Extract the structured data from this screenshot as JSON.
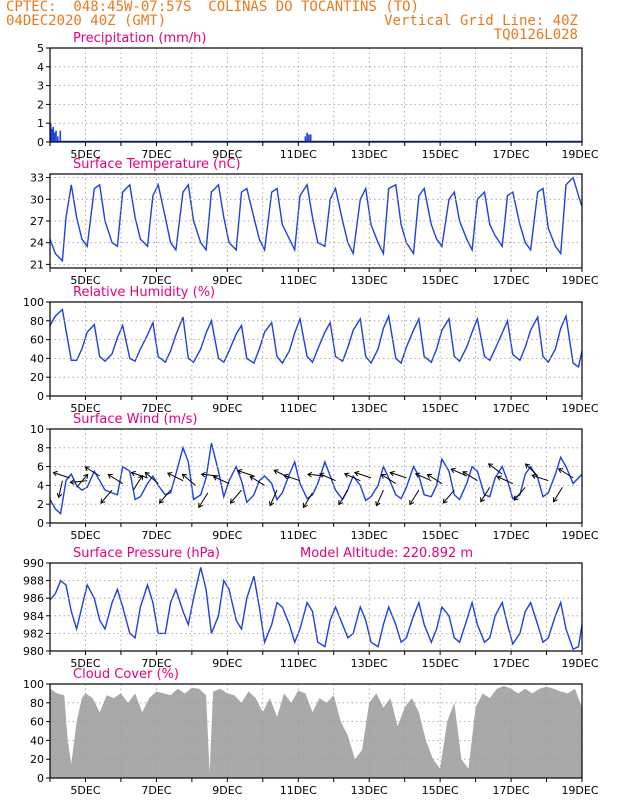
{
  "header": {
    "line1_left": "CPTEC:  048:45W-07:57S  COLINAS DO TOCANTINS (TO)",
    "line2_left": "04DEC2020 40Z (GMT)",
    "line2_right": "Vertical Grid Line: 40Z",
    "line3_right": "TQ0126L028",
    "model_altitude": "Model Altitude: 220.892 m"
  },
  "colors": {
    "header": "#e87a1e",
    "title": "#e6007e",
    "line": "#1f3fe0",
    "cloud": "#a9a9a9",
    "grid": "#9a9a9a"
  },
  "x_ticks": [
    "5DEC",
    "7DEC",
    "9DEC",
    "11DEC",
    "13DEC",
    "15DEC",
    "17DEC",
    "19DEC"
  ],
  "chart_data": [
    {
      "id": "precip",
      "type": "bar",
      "title": "Precipitation (mm/h)",
      "ylim": [
        0,
        5
      ],
      "yticks": [
        0,
        1,
        2,
        3,
        4,
        5
      ],
      "color": "#1f3fe0",
      "grid": true,
      "x_days": [
        0.02,
        0.05,
        0.09,
        0.13,
        0.17,
        0.22,
        0.29,
        7.2,
        7.25,
        7.3,
        7.35
      ],
      "values": [
        1.0,
        0.7,
        0.8,
        0.5,
        0.6,
        0.3,
        0.6,
        0.3,
        0.5,
        0.4,
        0.4
      ]
    },
    {
      "id": "temp",
      "type": "line",
      "title": "Surface Temperature (nC)",
      "ylim": [
        20.5,
        33.5
      ],
      "yticks": [
        21,
        24,
        27,
        30,
        33
      ],
      "color": "#1f3fe0",
      "grid": true,
      "x_days": [
        0.0,
        0.15,
        0.35,
        0.45,
        0.6,
        0.75,
        0.9,
        1.05,
        1.25,
        1.4,
        1.55,
        1.75,
        1.9,
        2.05,
        2.25,
        2.4,
        2.55,
        2.75,
        2.9,
        3.05,
        3.25,
        3.4,
        3.55,
        3.75,
        3.9,
        4.05,
        4.25,
        4.4,
        4.55,
        4.75,
        4.9,
        5.05,
        5.25,
        5.4,
        5.55,
        5.75,
        5.9,
        6.05,
        6.25,
        6.4,
        6.55,
        6.75,
        6.9,
        7.05,
        7.25,
        7.4,
        7.55,
        7.75,
        7.9,
        8.05,
        8.25,
        8.4,
        8.55,
        8.75,
        8.9,
        9.05,
        9.25,
        9.4,
        9.55,
        9.75,
        9.9,
        10.05,
        10.25,
        10.4,
        10.55,
        10.75,
        10.9,
        11.05,
        11.25,
        11.4,
        11.55,
        11.75,
        11.9,
        12.05,
        12.25,
        12.4,
        12.55,
        12.75,
        12.9,
        13.05,
        13.25,
        13.4,
        13.55,
        13.75,
        13.9,
        14.05,
        14.25,
        14.4,
        14.55,
        14.75,
        14.9,
        15.0
      ],
      "values": [
        24.5,
        22.5,
        21.5,
        27.5,
        32.0,
        27.5,
        24.5,
        23.5,
        31.5,
        32.0,
        27.0,
        24.0,
        23.5,
        31.0,
        32.0,
        27.5,
        24.5,
        23.5,
        30.5,
        32.0,
        27.5,
        24.0,
        23.0,
        31.0,
        32.0,
        27.0,
        24.0,
        23.0,
        31.0,
        32.0,
        27.5,
        24.0,
        23.0,
        31.0,
        31.5,
        27.5,
        24.5,
        23.0,
        31.0,
        31.5,
        26.5,
        24.5,
        23.0,
        30.5,
        32.0,
        27.5,
        24.0,
        23.5,
        30.0,
        31.5,
        27.0,
        24.0,
        22.5,
        30.0,
        31.5,
        26.5,
        24.0,
        22.5,
        31.5,
        32.0,
        26.5,
        24.0,
        22.5,
        30.5,
        31.5,
        26.5,
        24.5,
        23.5,
        30.0,
        31.0,
        27.0,
        24.5,
        23.0,
        30.0,
        31.0,
        26.5,
        25.0,
        23.5,
        30.5,
        31.0,
        26.5,
        24.0,
        23.0,
        31.0,
        31.5,
        26.0,
        23.5,
        22.5,
        32.0,
        33.0,
        30.5,
        29.0
      ]
    },
    {
      "id": "rh",
      "type": "line",
      "title": "Relative Humidity (%)",
      "ylim": [
        0,
        100
      ],
      "yticks": [
        0,
        20,
        40,
        60,
        80,
        100
      ],
      "color": "#1f3fe0",
      "grid": true,
      "x_days": [
        0.0,
        0.15,
        0.35,
        0.45,
        0.6,
        0.75,
        0.9,
        1.05,
        1.25,
        1.4,
        1.55,
        1.75,
        1.9,
        2.05,
        2.25,
        2.4,
        2.55,
        2.75,
        2.9,
        3.05,
        3.25,
        3.4,
        3.55,
        3.75,
        3.9,
        4.05,
        4.25,
        4.4,
        4.55,
        4.75,
        4.9,
        5.05,
        5.25,
        5.4,
        5.55,
        5.75,
        5.9,
        6.05,
        6.25,
        6.4,
        6.55,
        6.75,
        6.9,
        7.05,
        7.25,
        7.4,
        7.55,
        7.75,
        7.9,
        8.05,
        8.25,
        8.4,
        8.55,
        8.75,
        8.9,
        9.05,
        9.25,
        9.4,
        9.55,
        9.75,
        9.9,
        10.05,
        10.25,
        10.4,
        10.55,
        10.75,
        10.9,
        11.05,
        11.25,
        11.4,
        11.55,
        11.75,
        11.9,
        12.05,
        12.25,
        12.4,
        12.55,
        12.75,
        12.9,
        13.05,
        13.25,
        13.4,
        13.55,
        13.75,
        13.9,
        14.05,
        14.25,
        14.4,
        14.55,
        14.75,
        14.9,
        15.0
      ],
      "values": [
        75,
        85,
        92,
        70,
        38,
        38,
        50,
        68,
        76,
        42,
        37,
        45,
        62,
        75,
        40,
        37,
        50,
        65,
        78,
        42,
        36,
        48,
        65,
        84,
        40,
        36,
        50,
        67,
        80,
        40,
        36,
        48,
        66,
        75,
        40,
        35,
        50,
        68,
        78,
        42,
        35,
        48,
        67,
        82,
        42,
        36,
        50,
        68,
        78,
        42,
        37,
        52,
        70,
        82,
        42,
        35,
        50,
        72,
        85,
        40,
        35,
        52,
        70,
        82,
        42,
        36,
        50,
        70,
        82,
        42,
        37,
        52,
        68,
        82,
        42,
        38,
        50,
        67,
        80,
        44,
        38,
        52,
        70,
        84,
        42,
        36,
        50,
        72,
        85,
        35,
        31,
        48
      ]
    },
    {
      "id": "wind",
      "type": "line",
      "title": "Surface Wind (m/s)",
      "ylim": [
        0,
        10
      ],
      "yticks": [
        0,
        2,
        4,
        6,
        8,
        10
      ],
      "color": "#1f3fe0",
      "grid": true,
      "x_days": [
        0.0,
        0.15,
        0.3,
        0.45,
        0.6,
        0.75,
        0.9,
        1.05,
        1.25,
        1.4,
        1.55,
        1.75,
        1.9,
        2.05,
        2.25,
        2.4,
        2.55,
        2.75,
        2.9,
        3.05,
        3.25,
        3.4,
        3.55,
        3.75,
        3.9,
        4.05,
        4.25,
        4.4,
        4.55,
        4.75,
        4.9,
        5.05,
        5.25,
        5.4,
        5.55,
        5.75,
        5.9,
        6.05,
        6.25,
        6.4,
        6.55,
        6.75,
        6.9,
        7.05,
        7.25,
        7.4,
        7.55,
        7.75,
        7.9,
        8.05,
        8.25,
        8.4,
        8.55,
        8.75,
        8.9,
        9.05,
        9.25,
        9.4,
        9.55,
        9.75,
        9.9,
        10.05,
        10.25,
        10.4,
        10.55,
        10.75,
        10.9,
        11.05,
        11.25,
        11.4,
        11.55,
        11.75,
        11.9,
        12.05,
        12.25,
        12.4,
        12.55,
        12.75,
        12.9,
        13.05,
        13.25,
        13.4,
        13.55,
        13.75,
        13.9,
        14.05,
        14.25,
        14.4,
        14.55,
        14.75,
        14.9,
        15.0
      ],
      "values": [
        2.5,
        1.5,
        1.0,
        4.5,
        5.2,
        4.0,
        3.5,
        3.8,
        5.5,
        4.5,
        3.5,
        3.2,
        3.0,
        6.0,
        5.5,
        2.5,
        2.8,
        4.2,
        5.0,
        4.0,
        3.0,
        3.2,
        5.2,
        8.0,
        6.5,
        2.5,
        3.0,
        4.8,
        8.5,
        5.5,
        2.8,
        4.5,
        6.0,
        4.5,
        2.2,
        3.0,
        4.5,
        5.0,
        4.2,
        2.5,
        3.2,
        5.2,
        6.5,
        4.2,
        2.6,
        3.0,
        4.2,
        6.5,
        5.0,
        3.5,
        2.5,
        3.6,
        5.0,
        4.0,
        2.4,
        2.8,
        4.0,
        6.0,
        4.8,
        3.0,
        2.6,
        3.8,
        6.0,
        5.0,
        3.0,
        2.8,
        4.0,
        6.8,
        5.5,
        3.0,
        2.5,
        4.2,
        6.0,
        5.5,
        3.0,
        2.8,
        4.8,
        6.0,
        4.5,
        2.6,
        3.0,
        5.2,
        6.0,
        4.8,
        2.8,
        3.2,
        5.2,
        7.0,
        6.0,
        4.2,
        4.8,
        5.2
      ]
    },
    {
      "id": "pressure",
      "type": "line",
      "title": "Surface Pressure (hPa)",
      "ylim": [
        980,
        990
      ],
      "yticks": [
        980,
        982,
        984,
        986,
        988,
        990
      ],
      "color": "#1f3fe0",
      "grid": true,
      "x_days": [
        0.0,
        0.15,
        0.3,
        0.45,
        0.6,
        0.75,
        0.9,
        1.05,
        1.25,
        1.4,
        1.55,
        1.75,
        1.9,
        2.05,
        2.25,
        2.4,
        2.55,
        2.75,
        2.9,
        3.05,
        3.25,
        3.4,
        3.55,
        3.75,
        3.9,
        4.05,
        4.25,
        4.4,
        4.55,
        4.75,
        4.9,
        5.05,
        5.25,
        5.4,
        5.55,
        5.75,
        5.9,
        6.05,
        6.25,
        6.4,
        6.55,
        6.75,
        6.9,
        7.05,
        7.25,
        7.4,
        7.55,
        7.75,
        7.9,
        8.05,
        8.25,
        8.4,
        8.55,
        8.75,
        8.9,
        9.05,
        9.25,
        9.4,
        9.55,
        9.75,
        9.9,
        10.05,
        10.25,
        10.4,
        10.55,
        10.75,
        10.9,
        11.05,
        11.25,
        11.4,
        11.55,
        11.75,
        11.9,
        12.05,
        12.25,
        12.4,
        12.55,
        12.75,
        12.9,
        13.05,
        13.25,
        13.4,
        13.55,
        13.75,
        13.9,
        14.05,
        14.25,
        14.4,
        14.55,
        14.75,
        14.9,
        15.0
      ],
      "values": [
        985.8,
        986.5,
        988.0,
        987.5,
        984.5,
        982.5,
        985.0,
        987.5,
        986.0,
        983.5,
        982.5,
        985.5,
        987.0,
        985.0,
        982.0,
        981.5,
        985.0,
        987.5,
        985.5,
        982.0,
        982.0,
        985.5,
        987.0,
        984.5,
        983.0,
        986.0,
        989.5,
        987.0,
        982.0,
        984.0,
        988.0,
        987.0,
        983.5,
        982.5,
        986.0,
        988.5,
        985.0,
        981.0,
        983.0,
        985.5,
        985.0,
        983.0,
        981.0,
        982.5,
        985.5,
        984.5,
        981.0,
        980.5,
        983.5,
        985.0,
        983.0,
        981.5,
        982.0,
        985.0,
        983.5,
        981.0,
        980.5,
        983.0,
        985.0,
        983.0,
        981.0,
        981.5,
        984.0,
        985.5,
        983.0,
        981.0,
        982.5,
        985.0,
        984.0,
        981.5,
        981.0,
        983.5,
        985.5,
        983.0,
        981.0,
        981.5,
        984.0,
        985.5,
        983.0,
        980.8,
        982.0,
        984.5,
        985.5,
        983.0,
        981.0,
        981.5,
        984.0,
        985.5,
        982.5,
        980.2,
        980.5,
        983.0
      ]
    },
    {
      "id": "cloud",
      "type": "area",
      "title": "Cloud Cover (%)",
      "ylim": [
        0,
        100
      ],
      "yticks": [
        0,
        20,
        40,
        60,
        80,
        100
      ],
      "color": "#a9a9a9",
      "grid": true,
      "x_days": [
        0.0,
        0.2,
        0.4,
        0.5,
        0.6,
        0.75,
        0.9,
        1.0,
        1.2,
        1.4,
        1.6,
        1.8,
        2.0,
        2.2,
        2.4,
        2.6,
        2.8,
        3.0,
        3.2,
        3.4,
        3.6,
        3.8,
        4.0,
        4.2,
        4.4,
        4.5,
        4.6,
        4.8,
        5.0,
        5.2,
        5.4,
        5.6,
        5.8,
        6.0,
        6.2,
        6.4,
        6.6,
        6.8,
        7.0,
        7.2,
        7.4,
        7.6,
        7.8,
        8.0,
        8.2,
        8.4,
        8.6,
        8.8,
        9.0,
        9.2,
        9.4,
        9.6,
        9.8,
        10.0,
        10.2,
        10.4,
        10.6,
        10.8,
        11.0,
        11.2,
        11.4,
        11.6,
        11.8,
        12.0,
        12.2,
        12.4,
        12.6,
        12.8,
        13.0,
        13.2,
        13.4,
        13.6,
        13.8,
        14.0,
        14.2,
        14.4,
        14.6,
        14.8,
        15.0
      ],
      "values": [
        95,
        90,
        88,
        40,
        15,
        60,
        85,
        90,
        85,
        70,
        88,
        85,
        90,
        80,
        90,
        70,
        85,
        92,
        90,
        88,
        95,
        90,
        96,
        95,
        88,
        5,
        92,
        95,
        90,
        88,
        80,
        92,
        85,
        70,
        85,
        65,
        90,
        80,
        93,
        90,
        70,
        85,
        80,
        88,
        60,
        45,
        20,
        30,
        80,
        90,
        75,
        85,
        55,
        75,
        85,
        70,
        40,
        20,
        10,
        60,
        80,
        20,
        10,
        75,
        90,
        85,
        95,
        98,
        95,
        90,
        95,
        90,
        95,
        97,
        95,
        92,
        90,
        95,
        75
      ]
    }
  ],
  "wind_arrows": {
    "x_days": [
      0.35,
      0.55,
      0.75,
      1.05,
      1.4,
      1.75,
      2.05,
      2.35,
      2.75,
      3.05,
      3.4,
      3.75,
      4.1,
      4.45,
      4.75,
      5.05,
      5.4,
      5.75,
      6.05,
      6.4,
      6.75,
      7.05,
      7.4,
      7.75,
      8.05,
      8.4,
      8.75,
      9.05,
      9.4,
      9.75,
      10.05,
      10.4,
      10.75,
      11.05,
      11.4,
      11.75,
      12.05,
      12.4,
      12.75,
      13.05,
      13.4,
      13.75,
      14.05,
      14.45,
      14.75
    ],
    "y_values": [
      4.5,
      4.8,
      3.8,
      4.5,
      5.0,
      3.5,
      4.2,
      3.5,
      4.8,
      4.2,
      3.5,
      4.5,
      4.0,
      3.2,
      5.0,
      4.2,
      3.5,
      5.0,
      4.0,
      3.5,
      4.8,
      4.5,
      3.2,
      5.0,
      4.5,
      3.5,
      4.5,
      4.8,
      3.5,
      4.2,
      4.8,
      3.5,
      4.5,
      4.2,
      3.5,
      5.0,
      4.5,
      3.8,
      5.2,
      4.2,
      3.8,
      5.0,
      4.5,
      3.8,
      4.8
    ],
    "u": [
      -0.2,
      -0.9,
      0.6,
      -1.0,
      -0.8,
      -0.6,
      -0.8,
      0.5,
      -0.9,
      -0.7,
      -0.6,
      -0.8,
      -0.7,
      -0.5,
      -1.0,
      -0.9,
      -0.6,
      -0.9,
      -0.8,
      -0.4,
      -0.8,
      -0.9,
      -0.5,
      -1.0,
      -0.9,
      -0.5,
      -0.9,
      -0.9,
      -0.4,
      -0.8,
      -0.9,
      -0.5,
      -0.9,
      -0.8,
      -0.6,
      -0.9,
      -0.8,
      -0.5,
      -0.8,
      -0.9,
      -0.6,
      -0.7,
      -0.9,
      -0.5,
      -0.8
    ],
    "v": [
      -0.9,
      0.3,
      0.7,
      -0.1,
      0.5,
      -0.7,
      0.5,
      0.8,
      0.3,
      0.6,
      -0.7,
      0.4,
      0.6,
      -0.8,
      0.1,
      0.4,
      -0.7,
      0.3,
      0.5,
      -0.9,
      0.4,
      0.3,
      -0.8,
      0.1,
      0.4,
      -0.8,
      0.4,
      0.3,
      -0.9,
      0.5,
      0.3,
      -0.8,
      0.4,
      0.5,
      -0.7,
      0.4,
      0.5,
      -0.8,
      0.6,
      0.4,
      -0.7,
      0.7,
      0.3,
      -0.8,
      0.5
    ]
  }
}
